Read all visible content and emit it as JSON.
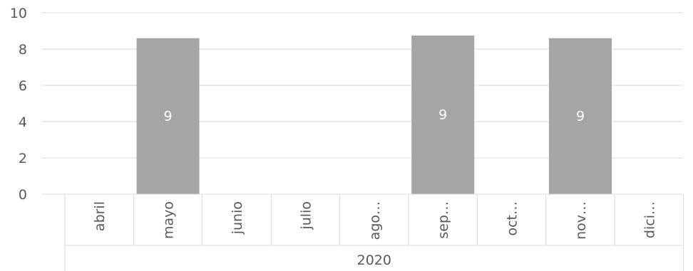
{
  "chart_data": {
    "type": "bar",
    "group_label": "2020",
    "categories": [
      "abril",
      "mayo",
      "junio",
      "julio",
      "ago…",
      "sep…",
      "oct…",
      "nov…",
      "dici…"
    ],
    "values": [
      null,
      8.6,
      null,
      null,
      null,
      8.75,
      null,
      8.6,
      null
    ],
    "data_labels": [
      "",
      "9",
      "",
      "",
      "",
      "9",
      "",
      "9",
      ""
    ],
    "ylim": [
      0,
      10
    ],
    "yticks": [
      "0",
      "2",
      "4",
      "6",
      "8",
      "10"
    ],
    "grid": true,
    "colors": {
      "bar": "#a5a5a5",
      "grid": "#d9d9d9",
      "axis": "#d9d9d9",
      "text": "#595959",
      "label": "#ffffff"
    }
  }
}
